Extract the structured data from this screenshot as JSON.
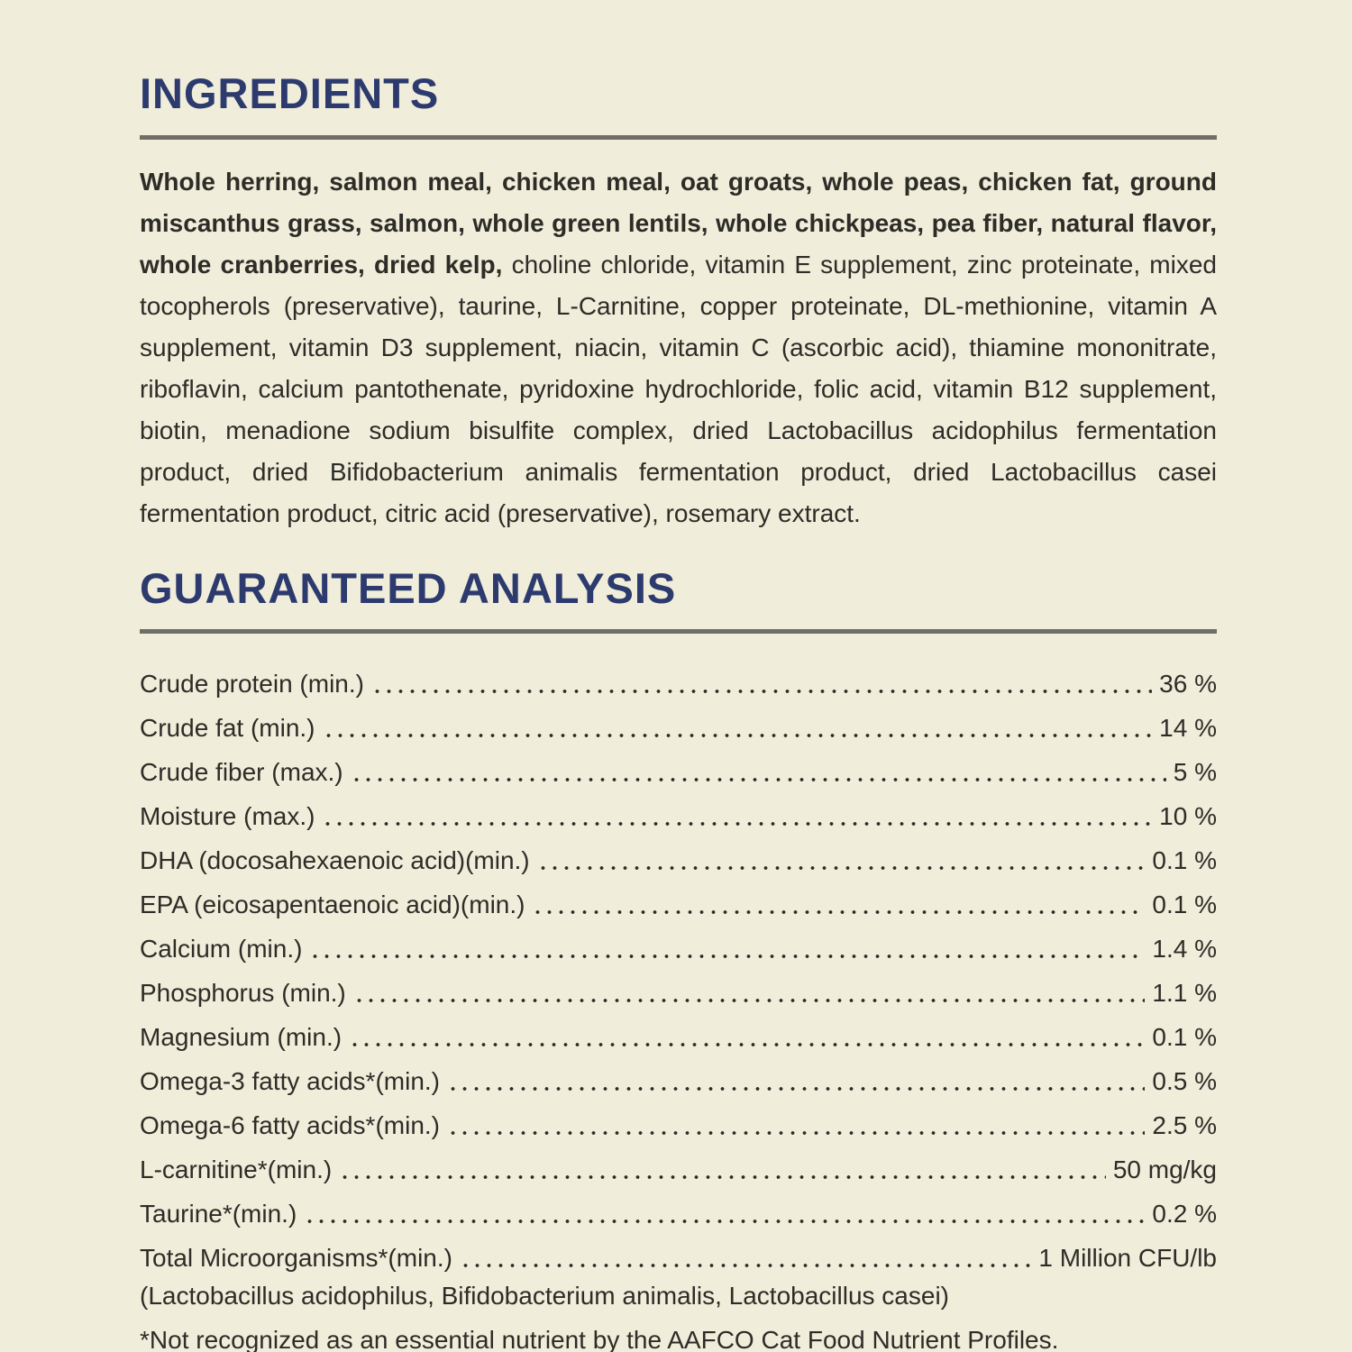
{
  "page": {
    "background_color": "#f0edda",
    "accent_color": "#2c3a6e",
    "text_color": "#2d2c27",
    "rule_color": "#6f6f68"
  },
  "ingredients": {
    "title": "INGREDIENTS",
    "bold_text": "Whole herring, salmon meal, chicken meal, oat groats, whole peas, chicken fat, ground miscanthus grass, salmon, whole green lentils, whole chickpeas, pea fiber, natural flavor, whole cranberries, dried kelp,",
    "regular_text": " choline chloride, vitamin E supplement, zinc proteinate, mixed tocopherols (preservative), taurine, L-Carnitine, copper proteinate, DL-methionine, vitamin A supplement, vitamin D3 supplement, niacin, vitamin C (ascorbic acid), thiamine mononitrate, riboflavin, calcium pantothenate, pyridoxine hydrochloride, folic acid, vitamin B12 supplement, biotin, menadione sodium bisulfite complex, dried Lactobacillus acidophilus fermentation product, dried Bifidobacterium animalis fermentation product, dried Lactobacillus casei fermentation product, citric acid (preservative), rosemary extract."
  },
  "guaranteed_analysis": {
    "title": "GUARANTEED ANALYSIS",
    "rows": [
      {
        "label": "Crude protein (min.)",
        "value": "36 %"
      },
      {
        "label": "Crude fat (min.)",
        "value": "14 %"
      },
      {
        "label": "Crude fiber (max.)",
        "value": "5 %"
      },
      {
        "label": "Moisture (max.)",
        "value": "10 %"
      },
      {
        "label": "DHA (docosahexaenoic acid)(min.)",
        "value": "0.1 %"
      },
      {
        "label": "EPA (eicosapentaenoic acid)(min.)",
        "value": "0.1 %"
      },
      {
        "label": "Calcium (min.)",
        "value": "1.4 %"
      },
      {
        "label": "Phosphorus (min.)",
        "value": "1.1 %"
      },
      {
        "label": "Magnesium (min.)",
        "value": "0.1 %"
      },
      {
        "label": "Omega-3 fatty acids*(min.)",
        "value": "0.5 %"
      },
      {
        "label": "Omega-6 fatty acids*(min.)",
        "value": "2.5 %"
      },
      {
        "label": "L-carnitine*(min.)",
        "value": "50 mg/kg"
      },
      {
        "label": "Taurine*(min.)",
        "value": "0.2 %"
      },
      {
        "label": "Total Microorganisms*(min.)",
        "value": "1 Million CFU/lb"
      }
    ],
    "footnote_organisms": "(Lactobacillus acidophilus, Bifidobacterium animalis, Lactobacillus casei)",
    "footnote_aafco": "*Not recognized as an essential nutrient by the AAFCO Cat Food Nutrient Profiles."
  }
}
